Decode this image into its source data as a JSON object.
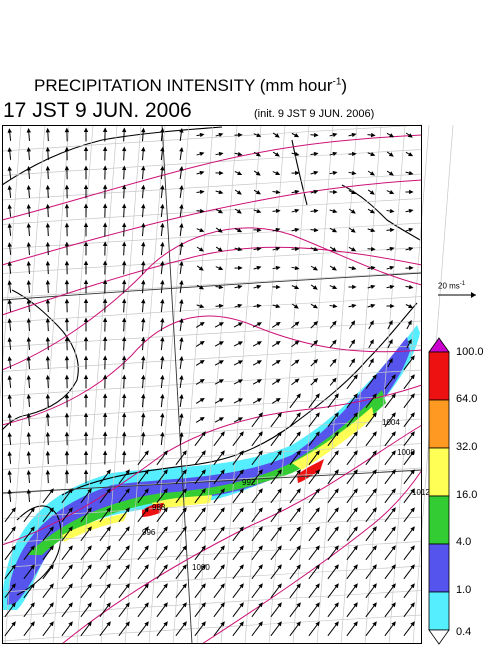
{
  "header": {
    "title_main": "PRECIPITATION INTENSITY (mm hour",
    "title_exp": "-1",
    "title_close": ")",
    "valid_time": "17 JST 9 JUN. 2006",
    "init_time": "(init. 9 JST 9 JUN. 2006)"
  },
  "wind_reference": {
    "label_main": "20 ms",
    "label_exp": "-1"
  },
  "colorbar": {
    "levels": [
      "100.0",
      "64.0",
      "32.0",
      "16.0",
      "4.0",
      "1.0",
      "0.4"
    ],
    "colors": [
      "#cc00cc",
      "#ee1111",
      "#ff9922",
      "#ffff55",
      "#33cc33",
      "#5555ee",
      "#55eeff",
      "#ffffff"
    ]
  },
  "contours": {
    "labels": [
      "988",
      "992",
      "996",
      "1000",
      "1004",
      "1008",
      "1012"
    ]
  }
}
